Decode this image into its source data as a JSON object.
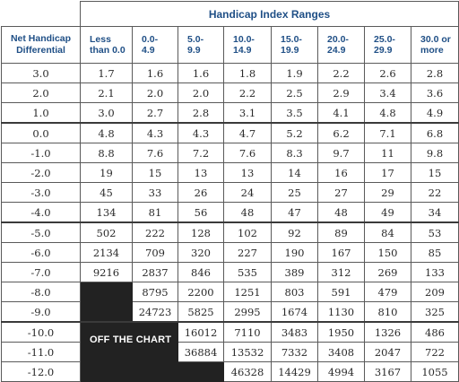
{
  "title": "Handicap Index Ranges",
  "row_header_label": "Net Handicap Differential",
  "columns": [
    "Less than 0.0",
    "0.0-4.9",
    "5.0-9.9",
    "10.0-14.9",
    "15.0-19.9",
    "20.0-24.9",
    "25.0-29.9",
    "30.0 or more"
  ],
  "column_lines": [
    [
      "Less",
      "than 0.0"
    ],
    [
      "0.0-",
      "4.9"
    ],
    [
      "5.0-",
      "9.9"
    ],
    [
      "10.0-",
      "14.9"
    ],
    [
      "15.0-",
      "19.9"
    ],
    [
      "20.0-",
      "24.9"
    ],
    [
      "25.0-",
      "29.9"
    ],
    [
      "30.0 or",
      "more"
    ]
  ],
  "off_chart_label": "OFF THE CHART",
  "rows": [
    {
      "label": "3.0",
      "values": [
        "1.7",
        "1.6",
        "1.6",
        "1.8",
        "1.9",
        "2.2",
        "2.6",
        "2.8"
      ]
    },
    {
      "label": "2.0",
      "values": [
        "2.1",
        "2.0",
        "2.0",
        "2.2",
        "2.5",
        "2.9",
        "3.4",
        "3.6"
      ]
    },
    {
      "label": "1.0",
      "values": [
        "3.0",
        "2.7",
        "2.8",
        "3.1",
        "3.5",
        "4.1",
        "4.8",
        "4.9"
      ]
    },
    {
      "label": "0.0",
      "values": [
        "4.8",
        "4.3",
        "4.3",
        "4.7",
        "5.2",
        "6.2",
        "7.1",
        "6.8"
      ]
    },
    {
      "label": "-1.0",
      "values": [
        "8.8",
        "7.6",
        "7.2",
        "7.6",
        "8.3",
        "9.7",
        "11",
        "9.8"
      ]
    },
    {
      "label": "-2.0",
      "values": [
        "19",
        "15",
        "13",
        "13",
        "14",
        "16",
        "17",
        "15"
      ]
    },
    {
      "label": "-3.0",
      "values": [
        "45",
        "33",
        "26",
        "24",
        "25",
        "27",
        "29",
        "22"
      ]
    },
    {
      "label": "-4.0",
      "values": [
        "134",
        "81",
        "56",
        "48",
        "47",
        "48",
        "49",
        "34"
      ]
    },
    {
      "label": "-5.0",
      "values": [
        "502",
        "222",
        "128",
        "102",
        "92",
        "89",
        "84",
        "53"
      ]
    },
    {
      "label": "-6.0",
      "values": [
        "2134",
        "709",
        "320",
        "227",
        "190",
        "167",
        "150",
        "85"
      ]
    },
    {
      "label": "-7.0",
      "values": [
        "9216",
        "2837",
        "846",
        "535",
        "389",
        "312",
        "269",
        "133"
      ]
    },
    {
      "label": "-8.0",
      "values": [
        "",
        "8795",
        "2200",
        "1251",
        "803",
        "591",
        "479",
        "209"
      ]
    },
    {
      "label": "-9.0",
      "values": [
        "",
        "24723",
        "5825",
        "2995",
        "1674",
        "1130",
        "810",
        "325"
      ]
    },
    {
      "label": "-10.0",
      "values": [
        "",
        "",
        "16012",
        "7110",
        "3483",
        "1950",
        "1326",
        "486"
      ]
    },
    {
      "label": "-11.0",
      "values": [
        "",
        "",
        "36884",
        "13532",
        "7332",
        "3408",
        "2047",
        "722"
      ]
    },
    {
      "label": "-12.0",
      "values": [
        "",
        "",
        "",
        "46328",
        "14429",
        "4994",
        "3167",
        "1055"
      ]
    }
  ]
}
